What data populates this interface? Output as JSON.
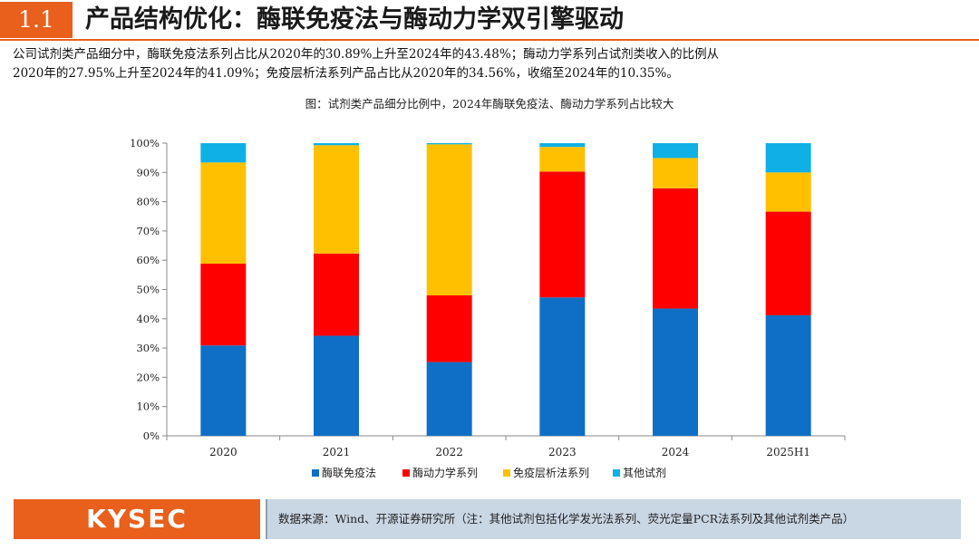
{
  "header": {
    "section_number": "1.1",
    "title": "产品结构优化：酶联免疫法与酶动力学双引擎驱动"
  },
  "description": {
    "line1": "公司试剂类产品细分中，酶联免疫法系列占比从2020年的30.89%上升至2024年的43.48%；酶动力学系列占试剂类收入的比例从",
    "line2": "2020年的27.95%上升至2024年的41.09%；免疫层析法系列产品占比从2020年的34.56%，收缩至2024年的10.35%。"
  },
  "figure_title": "图：试剂类产品细分比例中，2024年酶联免疫法、酶动力学系列占比较大",
  "chart_data": {
    "type": "bar",
    "stacked": true,
    "categories": [
      "2020",
      "2021",
      "2022",
      "2023",
      "2024",
      "2025H1"
    ],
    "series": [
      {
        "name": "酶联免疫法",
        "color": "#0f6fc6",
        "values": [
          30.89,
          34.2,
          25.2,
          47.3,
          43.48,
          41.2
        ]
      },
      {
        "name": "酶动力学系列",
        "color": "#ff0000",
        "values": [
          27.95,
          28.1,
          22.8,
          43.0,
          41.09,
          35.4
        ]
      },
      {
        "name": "免疫层析法系列",
        "color": "#ffc000",
        "values": [
          34.56,
          37.0,
          51.6,
          8.4,
          10.35,
          13.4
        ]
      },
      {
        "name": "其他试剂",
        "color": "#0fb0e6",
        "values": [
          6.6,
          0.7,
          0.4,
          1.3,
          5.08,
          10.0
        ]
      }
    ],
    "ylim": [
      0,
      100
    ],
    "yticks": [
      "0%",
      "10%",
      "20%",
      "30%",
      "40%",
      "50%",
      "60%",
      "70%",
      "80%",
      "90%",
      "100%"
    ],
    "legend_position": "bottom"
  },
  "footer": {
    "logo": "KYSEC",
    "source": "数据来源：Wind、开源证券研究所（注：其他试剂包括化学发光法系列、荧光定量PCR法系列及其他试剂类产品）"
  },
  "colors": {
    "accent": "#e8601c",
    "footer_bg": "#c9d6e4"
  }
}
